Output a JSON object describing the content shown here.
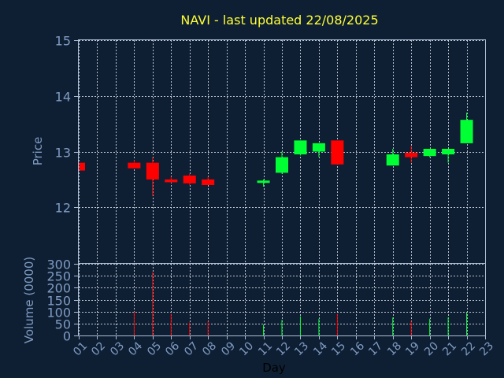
{
  "chart_data": [
    {
      "type": "candlestick",
      "title": "NAVI - last updated 22/08/2025",
      "ylabel": "Price",
      "ylim": [
        11.0,
        15.0
      ],
      "yticks": [
        12,
        13,
        14,
        15
      ],
      "xlim": [
        1,
        23
      ],
      "grid": true,
      "up_color": "#00ff33",
      "down_color": "#ff0000",
      "candles": [
        {
          "x": 1,
          "open": 12.8,
          "high": 12.8,
          "low": 12.66,
          "close": 12.66
        },
        {
          "x": 4,
          "open": 12.8,
          "high": 12.85,
          "low": 12.7,
          "close": 12.7
        },
        {
          "x": 5,
          "open": 12.8,
          "high": 12.9,
          "low": 12.2,
          "close": 12.5
        },
        {
          "x": 6,
          "open": 12.5,
          "high": 12.55,
          "low": 12.44,
          "close": 12.45
        },
        {
          "x": 7,
          "open": 12.57,
          "high": 12.6,
          "low": 12.4,
          "close": 12.43
        },
        {
          "x": 8,
          "open": 12.5,
          "high": 12.55,
          "low": 12.4,
          "close": 12.4
        },
        {
          "x": 11,
          "open": 12.45,
          "high": 12.5,
          "low": 12.37,
          "close": 12.48
        },
        {
          "x": 12,
          "open": 12.62,
          "high": 13.0,
          "low": 12.6,
          "close": 12.9
        },
        {
          "x": 13,
          "open": 12.95,
          "high": 13.2,
          "low": 12.93,
          "close": 13.2
        },
        {
          "x": 14,
          "open": 13.0,
          "high": 13.15,
          "low": 12.9,
          "close": 13.15
        },
        {
          "x": 15,
          "open": 13.2,
          "high": 13.2,
          "low": 12.77,
          "close": 12.77
        },
        {
          "x": 18,
          "open": 12.75,
          "high": 13.05,
          "low": 12.75,
          "close": 12.95
        },
        {
          "x": 19,
          "open": 12.98,
          "high": 13.1,
          "low": 12.8,
          "close": 12.9
        },
        {
          "x": 20,
          "open": 12.92,
          "high": 13.05,
          "low": 12.9,
          "close": 13.05
        },
        {
          "x": 21,
          "open": 12.95,
          "high": 13.05,
          "low": 12.8,
          "close": 13.05
        },
        {
          "x": 22,
          "open": 13.15,
          "high": 13.7,
          "low": 13.15,
          "close": 13.57
        }
      ]
    },
    {
      "type": "bar",
      "ylabel": "Volume (0000)",
      "xlabel": "Day",
      "ylim": [
        0,
        300
      ],
      "yticks": [
        0,
        50,
        100,
        150,
        200,
        250,
        300
      ],
      "xlim": [
        1,
        23
      ],
      "grid": true,
      "categories": [
        "01",
        "02",
        "03",
        "04",
        "05",
        "06",
        "07",
        "08",
        "09",
        "10",
        "11",
        "12",
        "13",
        "14",
        "15",
        "16",
        "17",
        "18",
        "19",
        "20",
        "21",
        "22",
        "23"
      ],
      "bars": [
        {
          "x": 4,
          "value": 100,
          "color": "#ff0000"
        },
        {
          "x": 5,
          "value": 265,
          "color": "#ff0000"
        },
        {
          "x": 6,
          "value": 90,
          "color": "#ff0000"
        },
        {
          "x": 7,
          "value": 55,
          "color": "#ff0000"
        },
        {
          "x": 8,
          "value": 60,
          "color": "#ff0000"
        },
        {
          "x": 11,
          "value": 45,
          "color": "#00ff33"
        },
        {
          "x": 12,
          "value": 65,
          "color": "#00ff33"
        },
        {
          "x": 13,
          "value": 80,
          "color": "#00ff33"
        },
        {
          "x": 14,
          "value": 70,
          "color": "#00ff33"
        },
        {
          "x": 15,
          "value": 90,
          "color": "#ff0000"
        },
        {
          "x": 18,
          "value": 75,
          "color": "#00ff33"
        },
        {
          "x": 19,
          "value": 60,
          "color": "#ff0000"
        },
        {
          "x": 20,
          "value": 70,
          "color": "#00ff33"
        },
        {
          "x": 21,
          "value": 75,
          "color": "#00ff33"
        },
        {
          "x": 22,
          "value": 95,
          "color": "#00ff33"
        }
      ]
    }
  ]
}
